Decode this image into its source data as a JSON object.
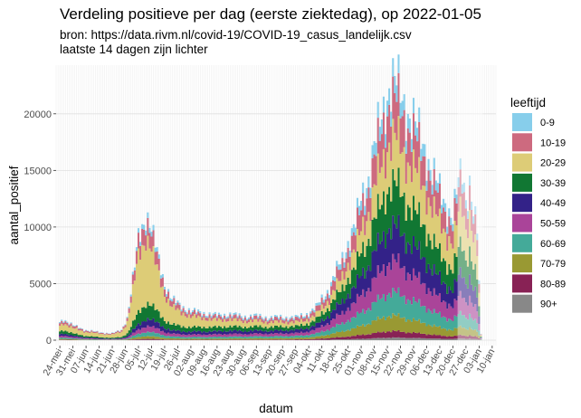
{
  "chart_data": {
    "type": "area",
    "stacked": true,
    "title": "Verdeling positieve per dag (eerste ziektedag), op 2022-01-05",
    "subtitle_lines": [
      "bron: https://data.rivm.nl/covid-19/COVID-19_casus_landelijk.csv",
      "laatste 14 dagen zijn lichter"
    ],
    "xlabel": "datum",
    "ylabel": "aantal_positief",
    "ylim": [
      0,
      24300
    ],
    "y_ticks": [
      0,
      5000,
      10000,
      15000,
      20000
    ],
    "y_tick_labels": [
      "0",
      "5000",
      "10000",
      "15000",
      "20000"
    ],
    "x_range": [
      "2021-05-22",
      "2022-01-12"
    ],
    "x_ticks": [
      "2021-05-24",
      "2021-05-31",
      "2021-06-07",
      "2021-06-14",
      "2021-06-21",
      "2021-06-28",
      "2021-07-05",
      "2021-07-12",
      "2021-07-19",
      "2021-07-26",
      "2021-08-02",
      "2021-08-09",
      "2021-08-16",
      "2021-08-23",
      "2021-08-30",
      "2021-09-06",
      "2021-09-13",
      "2021-09-20",
      "2021-09-27",
      "2021-10-04",
      "2021-10-11",
      "2021-10-18",
      "2021-10-25",
      "2021-11-01",
      "2021-11-08",
      "2021-11-15",
      "2021-11-22",
      "2021-11-29",
      "2021-12-06",
      "2021-12-13",
      "2021-12-20",
      "2021-12-27",
      "2022-01-03",
      "2022-01-10"
    ],
    "x_tick_labels": [
      "24-mei",
      "31-mei",
      "07-jun",
      "14-jun",
      "21-jun",
      "28-jun",
      "05-jul",
      "12-jul",
      "19-jul",
      "26-jul",
      "02-aug",
      "09-aug",
      "16-aug",
      "23-aug",
      "30-aug",
      "06-sep",
      "13-sep",
      "20-sep",
      "27-sep",
      "04-okt",
      "11-okt",
      "18-okt",
      "25-okt",
      "01-nov",
      "08-nov",
      "15-nov",
      "22-nov",
      "29-nov",
      "06-dec",
      "13-dec",
      "20-dec",
      "27-dec",
      "03-jan",
      "10-jan"
    ],
    "highlight_from": "2021-12-23",
    "grid": true,
    "legend": {
      "title": "leeftijd",
      "position": "right",
      "entries": [
        {
          "label": "0-9",
          "color": "#87CEEB"
        },
        {
          "label": "10-19",
          "color": "#CD6A7F"
        },
        {
          "label": "20-29",
          "color": "#DDCC77"
        },
        {
          "label": "30-39",
          "color": "#117733"
        },
        {
          "label": "40-49",
          "color": "#332288"
        },
        {
          "label": "50-59",
          "color": "#AA4499"
        },
        {
          "label": "60-69",
          "color": "#44AA99"
        },
        {
          "label": "70-79",
          "color": "#999933"
        },
        {
          "label": "80-89",
          "color": "#882255"
        },
        {
          "label": "90+",
          "color": "#888888"
        }
      ]
    },
    "totals_series": {
      "name": "",
      "x": [
        "2021-05-24",
        "2021-05-26",
        "2021-05-31",
        "2021-06-07",
        "2021-06-14",
        "2021-06-21",
        "2021-06-26",
        "2021-06-29",
        "2021-07-01",
        "2021-07-03",
        "2021-07-05",
        "2021-07-07",
        "2021-07-09",
        "2021-07-11",
        "2021-07-13",
        "2021-07-16",
        "2021-07-19",
        "2021-07-23",
        "2021-07-28",
        "2021-08-02",
        "2021-08-09",
        "2021-08-16",
        "2021-08-23",
        "2021-08-30",
        "2021-09-06",
        "2021-09-13",
        "2021-09-20",
        "2021-09-27",
        "2021-10-04",
        "2021-10-08",
        "2021-10-11",
        "2021-10-15",
        "2021-10-18",
        "2021-10-22",
        "2021-10-25",
        "2021-10-29",
        "2021-11-01",
        "2021-11-05",
        "2021-11-08",
        "2021-11-11",
        "2021-11-14",
        "2021-11-16",
        "2021-11-18",
        "2021-11-20",
        "2021-11-22",
        "2021-11-25",
        "2021-11-29",
        "2021-12-02",
        "2021-12-06",
        "2021-12-09",
        "2021-12-13",
        "2021-12-16",
        "2021-12-20",
        "2021-12-23",
        "2021-12-25",
        "2021-12-27",
        "2021-12-29",
        "2021-12-31",
        "2022-01-02",
        "2022-01-04"
      ],
      "values": [
        1600,
        1900,
        1300,
        900,
        700,
        600,
        900,
        2000,
        4200,
        6500,
        9000,
        10000,
        11200,
        10500,
        9000,
        7000,
        5000,
        3600,
        3000,
        2600,
        2400,
        2200,
        2300,
        2100,
        2150,
        2000,
        2050,
        2000,
        2400,
        2900,
        3700,
        4600,
        5800,
        7200,
        8700,
        10200,
        12500,
        14500,
        17000,
        19000,
        21000,
        22500,
        23000,
        22500,
        21500,
        20500,
        19500,
        18000,
        16500,
        15000,
        13000,
        12000,
        11000,
        13800,
        14800,
        12500,
        14200,
        11500,
        9500,
        500
      ]
    },
    "composition": {
      "note": "",
      "phases": [
        {
          "from": "2021-05-22",
          "shares": [
            0.06,
            0.14,
            0.3,
            0.16,
            0.11,
            0.09,
            0.07,
            0.04,
            0.02,
            0.01
          ]
        },
        {
          "from": "2021-07-05",
          "shares": [
            0.04,
            0.14,
            0.55,
            0.12,
            0.05,
            0.04,
            0.03,
            0.02,
            0.007,
            0.003
          ]
        },
        {
          "from": "2021-08-15",
          "shares": [
            0.07,
            0.13,
            0.28,
            0.17,
            0.12,
            0.1,
            0.07,
            0.04,
            0.015,
            0.005
          ]
        },
        {
          "from": "2021-10-15",
          "shares": [
            0.07,
            0.15,
            0.14,
            0.16,
            0.14,
            0.13,
            0.1,
            0.07,
            0.03,
            0.01
          ]
        },
        {
          "from": "2021-12-25",
          "shares": [
            0.06,
            0.15,
            0.22,
            0.17,
            0.13,
            0.11,
            0.08,
            0.05,
            0.02,
            0.01
          ]
        }
      ]
    }
  }
}
